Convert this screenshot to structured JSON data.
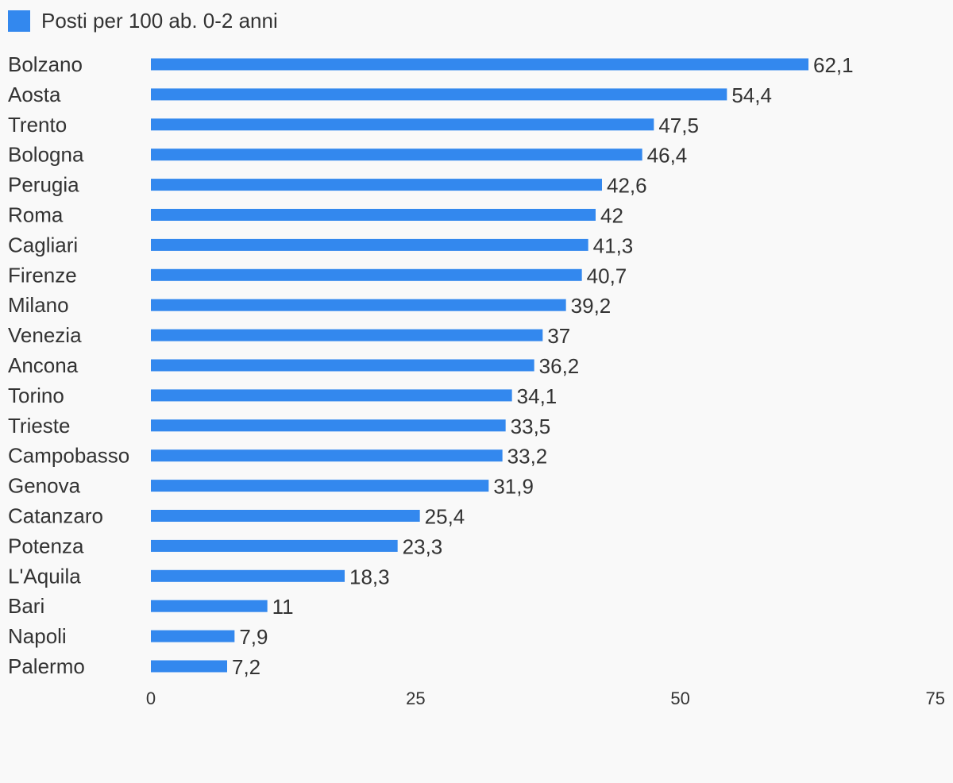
{
  "chart_data": {
    "type": "bar",
    "orientation": "horizontal",
    "categories": [
      "Bolzano",
      "Aosta",
      "Trento",
      "Bologna",
      "Perugia",
      "Roma",
      "Cagliari",
      "Firenze",
      "Milano",
      "Venezia",
      "Ancona",
      "Torino",
      "Trieste",
      "Campobasso",
      "Genova",
      "Catanzaro",
      "Potenza",
      "L'Aquila",
      "Bari",
      "Napoli",
      "Palermo"
    ],
    "series": [
      {
        "name": "Posti per 100 ab. 0-2 anni",
        "values": [
          62.1,
          54.4,
          47.5,
          46.4,
          42.6,
          42,
          41.3,
          40.7,
          39.2,
          37,
          36.2,
          34.1,
          33.5,
          33.2,
          31.9,
          25.4,
          23.3,
          18.3,
          11,
          7.9,
          7.2
        ],
        "value_labels": [
          "62,1",
          "54,4",
          "47,5",
          "46,4",
          "42,6",
          "42",
          "41,3",
          "40,7",
          "39,2",
          "37",
          "36,2",
          "34,1",
          "33,5",
          "33,2",
          "31,9",
          "25,4",
          "23,3",
          "18,3",
          "11",
          "7,9",
          "7,2"
        ],
        "color": "#3388ee"
      }
    ],
    "xlim": [
      0,
      75
    ],
    "x_ticks": [
      0,
      25,
      50,
      75
    ],
    "x_tick_labels": [
      "0",
      "25",
      "50",
      "75"
    ],
    "legend_position": "top-left",
    "grid": false,
    "title": "",
    "xlabel": "",
    "ylabel": ""
  }
}
